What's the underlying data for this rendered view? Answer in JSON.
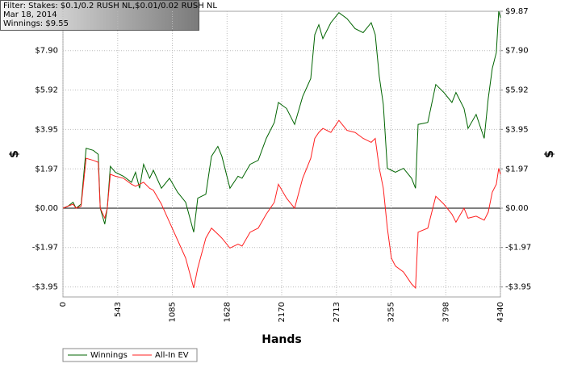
{
  "chart_data": {
    "type": "line",
    "annotations": [
      "Filter: Stakes: $0.1/0.2 RUSH NL,$0.01/0.02 RUSH NL",
      "Mar 18, 2014",
      "Winnings: $9.55"
    ],
    "xlabel": "Hands",
    "ylabel": "$",
    "y2label": "$",
    "xlim": [
      0,
      4340
    ],
    "xticks": [
      0,
      543,
      1085,
      1628,
      2170,
      2713,
      3255,
      3798,
      4340
    ],
    "ylim": [
      -4.45,
      9.87
    ],
    "yticks": [
      {
        "value": 7.9,
        "label": "$7.90"
      },
      {
        "value": 5.92,
        "label": "$5.92"
      },
      {
        "value": 3.95,
        "label": "$3.95"
      },
      {
        "value": 1.97,
        "label": "$1.97"
      },
      {
        "value": 0,
        "label": "$0.00"
      },
      {
        "value": -1.97,
        "label": "-$1.97"
      },
      {
        "value": -3.95,
        "label": "-$3.95"
      }
    ],
    "y2lim": [
      -4.45,
      9.87
    ],
    "y2ticks": [
      {
        "value": 9.87,
        "label": "$9.87"
      },
      {
        "value": 7.9,
        "label": "$7.90"
      },
      {
        "value": 5.92,
        "label": "$5.92"
      },
      {
        "value": 3.95,
        "label": "$3.95"
      },
      {
        "value": 1.97,
        "label": "$1.97"
      },
      {
        "value": 0,
        "label": "$0.00"
      },
      {
        "value": -1.97,
        "label": "-$1.97"
      },
      {
        "value": -3.95,
        "label": "-$3.95"
      }
    ],
    "grid": true,
    "legend": "bottom-left",
    "x": [
      0,
      50,
      100,
      130,
      180,
      230,
      300,
      350,
      370,
      415,
      440,
      470,
      520,
      600,
      680,
      720,
      760,
      800,
      860,
      897,
      977,
      1057,
      1137,
      1217,
      1297,
      1337,
      1417,
      1473,
      1537,
      1577,
      1657,
      1737,
      1777,
      1857,
      1937,
      2017,
      2097,
      2137,
      2218,
      2298,
      2378,
      2458,
      2498,
      2538,
      2578,
      2658,
      2738,
      2818,
      2898,
      2978,
      3058,
      3098,
      3138,
      3178,
      3218,
      3258,
      3298,
      3378,
      3458,
      3498,
      3523,
      3619,
      3699,
      3779,
      3859,
      3899,
      3979,
      4019,
      4099,
      4179,
      4219,
      4259,
      4299,
      4323,
      4340
    ],
    "series": [
      {
        "name": "Winnings",
        "color": "#006400",
        "values": [
          0,
          0.1,
          0.3,
          0.0,
          0.2,
          3.0,
          2.9,
          2.7,
          0.0,
          -0.8,
          0.0,
          2.1,
          1.8,
          1.6,
          1.3,
          1.8,
          1.0,
          2.2,
          1.5,
          1.9,
          1.0,
          1.5,
          0.8,
          0.3,
          -1.2,
          0.5,
          0.7,
          2.6,
          3.1,
          2.6,
          1.0,
          1.6,
          1.5,
          2.2,
          2.4,
          3.5,
          4.3,
          5.3,
          5.0,
          4.2,
          5.6,
          6.5,
          8.7,
          9.2,
          8.5,
          9.3,
          9.8,
          9.5,
          9.0,
          8.8,
          9.3,
          8.7,
          6.6,
          5.2,
          2.0,
          1.9,
          1.8,
          2.0,
          1.5,
          1.0,
          4.2,
          4.3,
          6.2,
          5.8,
          5.3,
          5.8,
          5.0,
          4.0,
          4.7,
          3.5,
          5.5,
          7.0,
          7.8,
          9.87,
          9.55
        ]
      },
      {
        "name": "All-In EV",
        "color": "#ff2020",
        "values": [
          0,
          0.1,
          0.2,
          0.0,
          0.1,
          2.5,
          2.4,
          2.3,
          0.0,
          -0.5,
          0.0,
          1.7,
          1.6,
          1.5,
          1.2,
          1.1,
          1.2,
          1.3,
          1.0,
          0.9,
          0.2,
          -0.7,
          -1.6,
          -2.5,
          -4.0,
          -3.0,
          -1.5,
          -1.0,
          -1.3,
          -1.5,
          -2.0,
          -1.8,
          -1.9,
          -1.2,
          -1.0,
          -0.3,
          0.3,
          1.2,
          0.5,
          0.0,
          1.5,
          2.5,
          3.5,
          3.8,
          4.0,
          3.8,
          4.4,
          3.9,
          3.8,
          3.5,
          3.3,
          3.5,
          2.0,
          1.0,
          -1.0,
          -2.5,
          -2.9,
          -3.2,
          -3.8,
          -4.0,
          -1.2,
          -1.0,
          0.6,
          0.2,
          -0.3,
          -0.7,
          0.0,
          -0.5,
          -0.4,
          -0.6,
          -0.2,
          0.8,
          1.2,
          2.0,
          1.7
        ]
      }
    ]
  }
}
